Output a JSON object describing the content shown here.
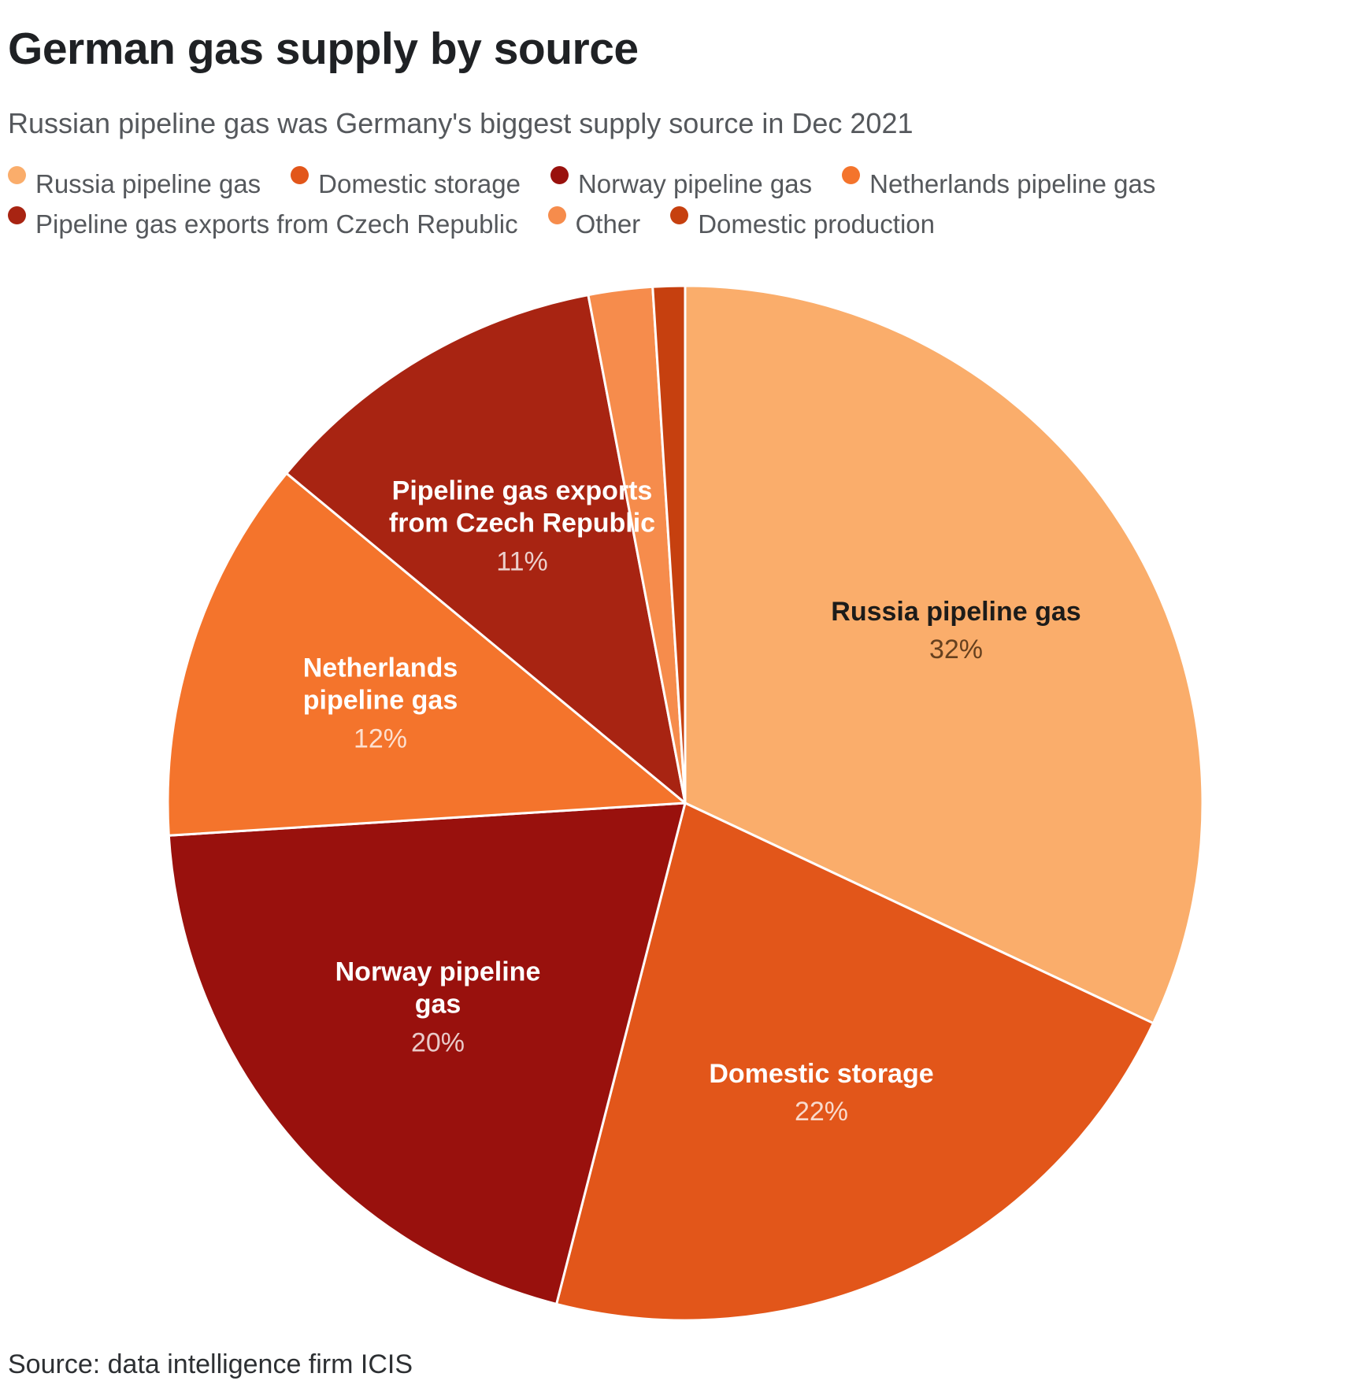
{
  "chart_data": {
    "type": "pie",
    "title": "German gas supply by source",
    "subtitle": "Russian pipeline gas was Germany's biggest supply source in Dec 2021",
    "source": "Source: data intelligence firm ICIS",
    "unit": "%",
    "legend_position": "top",
    "start_angle_deg": 0,
    "direction": "clockwise",
    "slices": [
      {
        "label": "Russia pipeline gas",
        "value": 32,
        "percent_label": "32%",
        "color": "#FAAD6B",
        "show_label": true,
        "label_theme": "dark",
        "label_width": 370
      },
      {
        "label": "Domestic storage",
        "value": 22,
        "percent_label": "22%",
        "color": "#E2561A",
        "show_label": true,
        "label_theme": "light",
        "label_width": 330
      },
      {
        "label": "Norway pipeline gas",
        "value": 20,
        "percent_label": "20%",
        "color": "#99110D",
        "show_label": true,
        "label_theme": "light",
        "label_width": 300
      },
      {
        "label": "Netherlands pipeline gas",
        "value": 12,
        "percent_label": "12%",
        "color": "#F4742C",
        "show_label": true,
        "label_theme": "light",
        "label_width": 245
      },
      {
        "label": "Pipeline gas exports from Czech Republic",
        "value": 11,
        "percent_label": "11%",
        "color": "#A82412",
        "show_label": true,
        "label_theme": "light",
        "label_width": 350
      },
      {
        "label": "Other",
        "value": 2,
        "percent_label": "2%",
        "color": "#F68C4C",
        "show_label": false,
        "label_theme": "light",
        "label_width": 0
      },
      {
        "label": "Domestic production",
        "value": 1,
        "percent_label": "1%",
        "color": "#C6400F",
        "show_label": false,
        "label_theme": "light",
        "label_width": 0
      }
    ]
  }
}
